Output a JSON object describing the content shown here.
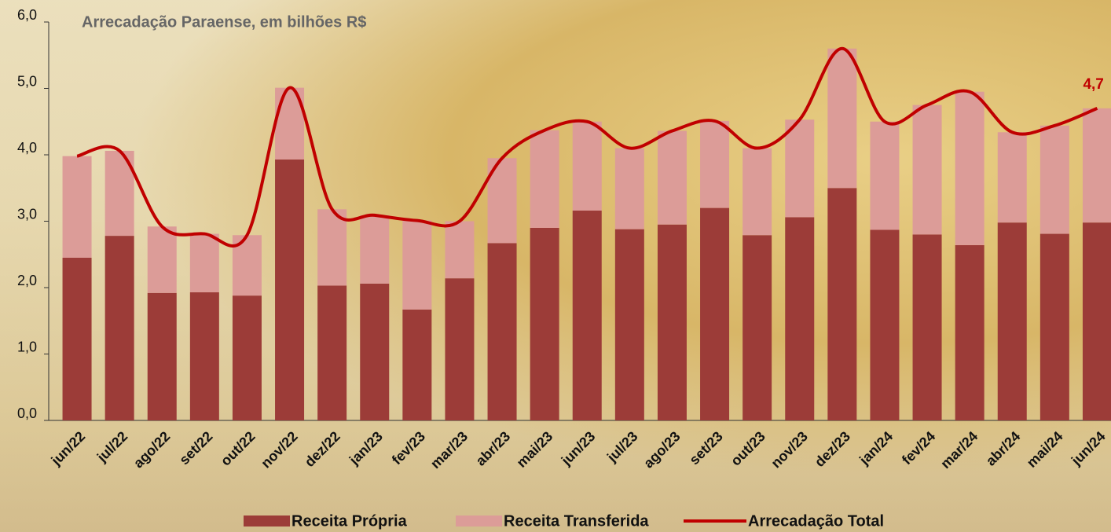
{
  "chart_data": {
    "type": "bar-line",
    "title": "Arrecadação Paraense, em bilhões R$",
    "categories": [
      "jun/22",
      "jul/22",
      "ago/22",
      "set/22",
      "out/22",
      "nov/22",
      "dez/22",
      "jan/23",
      "fev/23",
      "mar/23",
      "abr/23",
      "mai/23",
      "jun/23",
      "jul/23",
      "ago/23",
      "set/23",
      "out/23",
      "nov/23",
      "dez/23",
      "jan/24",
      "fev/24",
      "mar/24",
      "abr/24",
      "mai/24",
      "jun/24"
    ],
    "series": [
      {
        "name": "Receita Própria",
        "kind": "bar",
        "color": "#9c3c38",
        "values": [
          2.45,
          2.78,
          1.92,
          1.93,
          1.88,
          3.93,
          2.03,
          2.06,
          1.67,
          2.14,
          2.67,
          2.9,
          3.16,
          2.88,
          2.95,
          3.2,
          2.79,
          3.06,
          3.5,
          2.87,
          2.8,
          2.64,
          2.98,
          2.81,
          2.98
        ]
      },
      {
        "name": "Receita Transferida",
        "kind": "bar",
        "color": "#dc9c98",
        "values": [
          1.53,
          1.28,
          1.0,
          0.88,
          0.91,
          1.08,
          1.15,
          1.03,
          1.34,
          0.86,
          1.28,
          1.47,
          1.34,
          1.22,
          1.41,
          1.31,
          1.31,
          1.47,
          2.1,
          1.63,
          1.95,
          2.31,
          1.36,
          1.63,
          1.72
        ]
      },
      {
        "name": "Arrecadação Total",
        "kind": "line",
        "color": "#c00000",
        "values": [
          3.98,
          4.06,
          2.92,
          2.81,
          2.79,
          5.01,
          3.18,
          3.09,
          3.01,
          3.0,
          3.95,
          4.37,
          4.5,
          4.1,
          4.36,
          4.51,
          4.1,
          4.53,
          5.6,
          4.5,
          4.75,
          4.95,
          4.34,
          4.44,
          4.7
        ],
        "value_labels": [
          null,
          null,
          null,
          null,
          null,
          null,
          null,
          null,
          null,
          null,
          null,
          null,
          null,
          null,
          null,
          null,
          null,
          null,
          null,
          null,
          null,
          null,
          null,
          null,
          "4,7"
        ]
      }
    ],
    "ylim": [
      0,
      6
    ],
    "yticks": [
      {
        "value": 0,
        "label": "0,0"
      },
      {
        "value": 1,
        "label": "1,0"
      },
      {
        "value": 2,
        "label": "2,0"
      },
      {
        "value": 3,
        "label": "3,0"
      },
      {
        "value": 4,
        "label": "4,0"
      },
      {
        "value": 5,
        "label": "5,0"
      },
      {
        "value": 6,
        "label": "6,0"
      }
    ],
    "grid": false,
    "legend": "bottom"
  }
}
